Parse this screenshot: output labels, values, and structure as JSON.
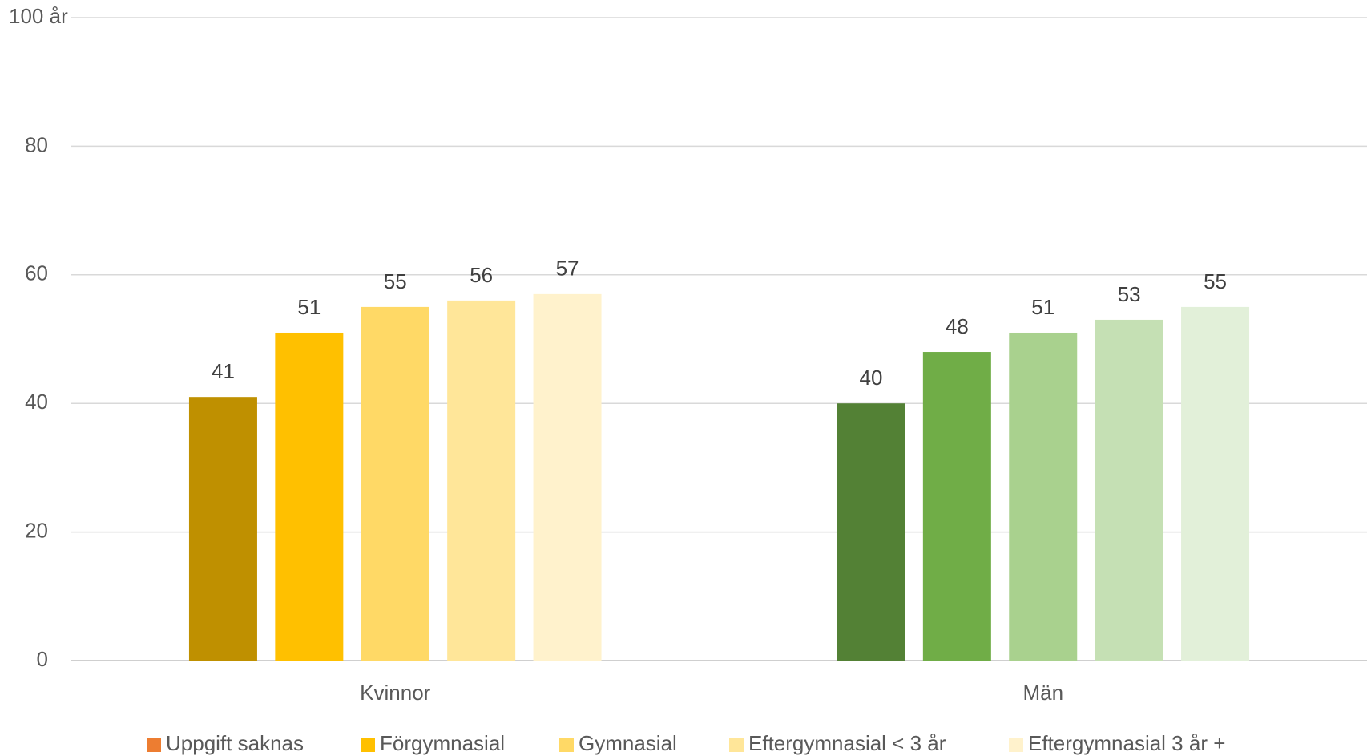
{
  "chart_data": {
    "type": "bar",
    "categories": [
      "Kvinnor",
      "Män"
    ],
    "series": [
      {
        "name": "Uppgift saknas",
        "color": "#ED7D31",
        "colors": [
          "#BF9000",
          "#538135"
        ],
        "values": [
          41,
          40
        ]
      },
      {
        "name": "Förgymnasial",
        "color": "#FFC000",
        "colors": [
          "#FFC000",
          "#70AD47"
        ],
        "values": [
          51,
          48
        ]
      },
      {
        "name": "Gymnasial",
        "color": "#FFD966",
        "colors": [
          "#FFD966",
          "#A9D18E"
        ],
        "values": [
          55,
          51
        ]
      },
      {
        "name": "Eftergymnasial < 3 år",
        "color": "#FFE699",
        "colors": [
          "#FFE699",
          "#C5E0B4"
        ],
        "values": [
          56,
          53
        ]
      },
      {
        "name": "Eftergymnasial 3 år +",
        "color": "#FFF2CC",
        "colors": [
          "#FFF2CC",
          "#E2F0D9"
        ],
        "values": [
          57,
          55
        ]
      }
    ],
    "ylim": [
      0,
      100
    ],
    "yticks": [
      0,
      20,
      40,
      60,
      80,
      {
        "value": 100,
        "label": "100 år"
      }
    ],
    "grid": true,
    "legend": "bottom"
  }
}
